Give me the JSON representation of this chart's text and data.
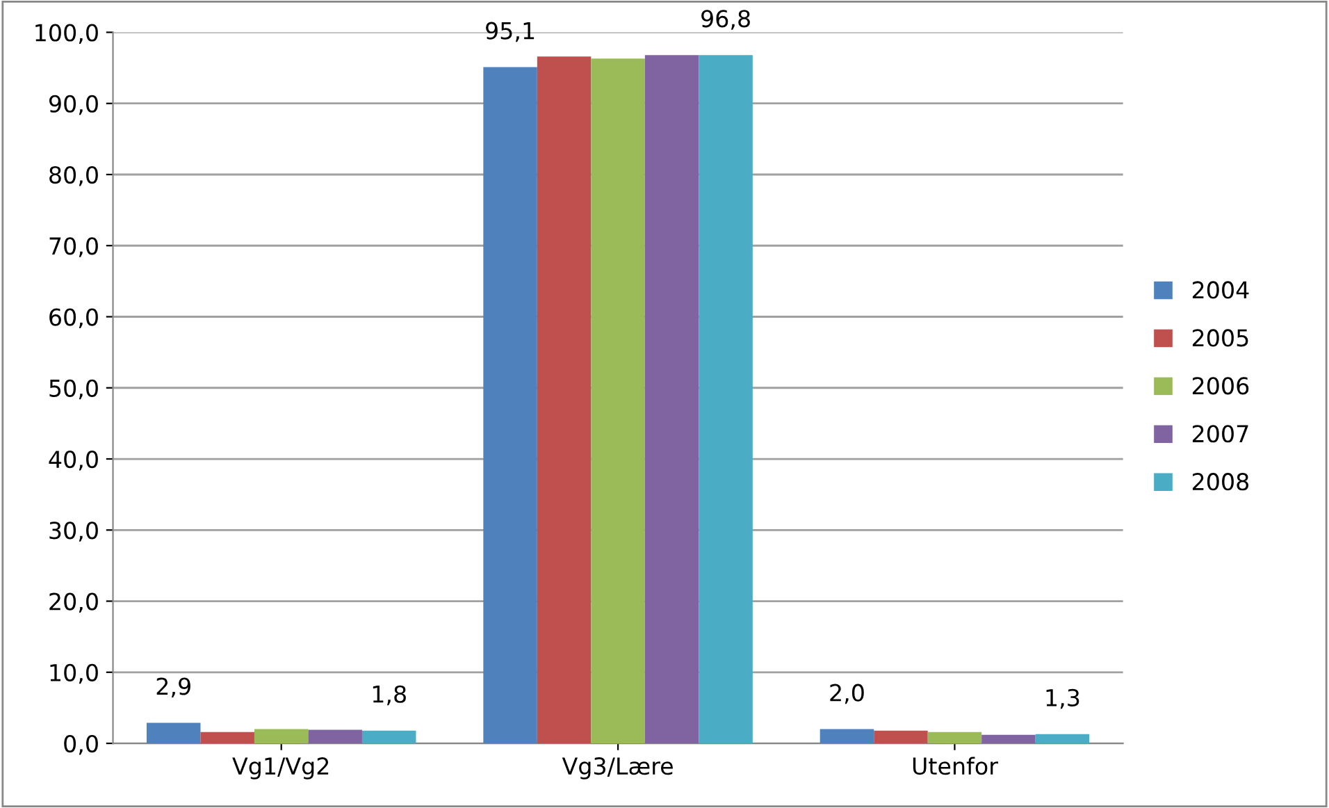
{
  "chart_data": {
    "type": "bar",
    "categories": [
      "Vg1/Vg2",
      "Vg3/Lære",
      "Utenfor"
    ],
    "series": [
      {
        "name": "2004",
        "color": "#4f81bd",
        "values": [
          2.9,
          95.1,
          2.0
        ],
        "value_labels": [
          "2,9",
          "95,1",
          "2,0"
        ]
      },
      {
        "name": "2005",
        "color": "#c0504d",
        "values": [
          1.6,
          96.6,
          1.8
        ]
      },
      {
        "name": "2006",
        "color": "#9bbb59",
        "values": [
          2.0,
          96.3,
          1.6
        ]
      },
      {
        "name": "2007",
        "color": "#8064a2",
        "values": [
          1.9,
          96.8,
          1.2
        ]
      },
      {
        "name": "2008",
        "color": "#4bacc6",
        "values": [
          1.8,
          96.8,
          1.3
        ],
        "value_labels": [
          "1,8",
          "96,8",
          "1,3"
        ]
      }
    ],
    "ylim": [
      0,
      100
    ],
    "yticks": [
      {
        "value": 0,
        "label": "0,0"
      },
      {
        "value": 10,
        "label": "10,0"
      },
      {
        "value": 20,
        "label": "20,0"
      },
      {
        "value": 30,
        "label": "30,0"
      },
      {
        "value": 40,
        "label": "40,0"
      },
      {
        "value": 50,
        "label": "50,0"
      },
      {
        "value": 60,
        "label": "60,0"
      },
      {
        "value": 70,
        "label": "70,0"
      },
      {
        "value": 80,
        "label": "80,0"
      },
      {
        "value": 90,
        "label": "90,0"
      },
      {
        "value": 100,
        "label": "100,0"
      }
    ],
    "grid": "y",
    "legend": "right"
  }
}
